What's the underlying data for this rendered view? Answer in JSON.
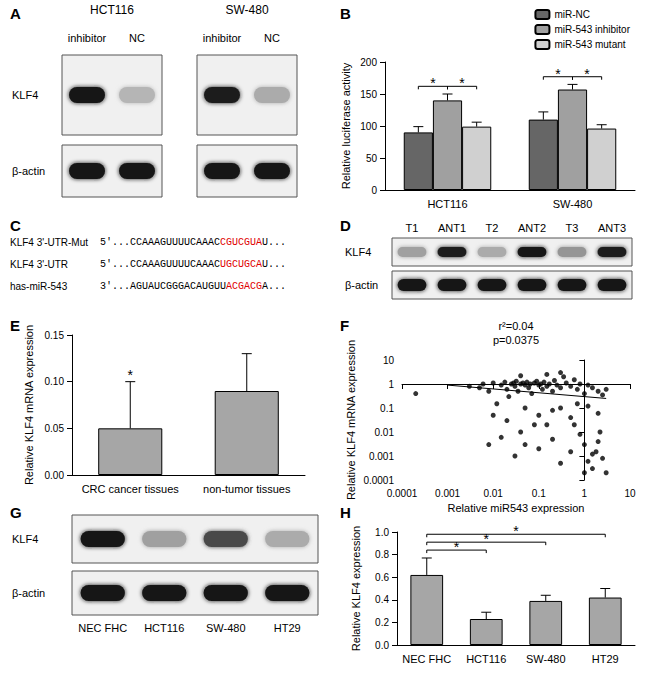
{
  "chart_data": [
    {
      "panel": "B",
      "type": "bar",
      "categories": [
        "HCT116",
        "SW-480"
      ],
      "series": [
        {
          "name": "miR-NC",
          "color": "#666666",
          "values": [
            90,
            110
          ],
          "errors": [
            9,
            12
          ]
        },
        {
          "name": "miR-543 inhibitor",
          "color": "#a0a0a0",
          "values": [
            140,
            157
          ],
          "errors": [
            10,
            8
          ]
        },
        {
          "name": "miR-543 mutant",
          "color": "#d0d0d0",
          "values": [
            99,
            96
          ],
          "errors": [
            7,
            6
          ]
        }
      ],
      "ylabel": "Relative luciferase activity",
      "ylim": [
        0,
        200
      ],
      "yticks": [
        0,
        50,
        100,
        150,
        200
      ],
      "grid": false,
      "legend": "upper right",
      "significance": [
        {
          "category": "HCT116",
          "from": "miR-NC",
          "to": "miR-543 inhibitor",
          "label": "*"
        },
        {
          "category": "HCT116",
          "from": "miR-543 inhibitor",
          "to": "miR-543 mutant",
          "label": "*"
        },
        {
          "category": "SW-480",
          "from": "miR-NC",
          "to": "miR-543 inhibitor",
          "label": "*"
        },
        {
          "category": "SW-480",
          "from": "miR-543 inhibitor",
          "to": "miR-543 mutant",
          "label": "*"
        }
      ]
    },
    {
      "panel": "E",
      "type": "bar",
      "categories": [
        "CRC cancer tissues",
        "non-tumor tissues"
      ],
      "values": [
        0.05,
        0.09
      ],
      "errors": [
        0.05,
        0.04
      ],
      "color": "#a6a6a6",
      "ylabel": "Relative KLF4 mRNA expression",
      "ylim": [
        0,
        0.15
      ],
      "yticks": [
        {
          "value": 0,
          "label": "0.00"
        },
        0.05,
        {
          "value": 0.1,
          "label": "0.10"
        },
        0.15
      ],
      "grid": false,
      "significance": [
        {
          "category": "CRC cancer tissues",
          "label": "*"
        }
      ]
    },
    {
      "panel": "F",
      "type": "scatter",
      "x": [
        0.0002,
        0.003,
        0.005,
        0.006,
        0.008,
        0.01,
        0.012,
        0.015,
        0.018,
        0.02,
        0.022,
        0.025,
        0.028,
        0.03,
        0.032,
        0.035,
        0.04,
        0.045,
        0.05,
        0.055,
        0.06,
        0.065,
        0.07,
        0.08,
        0.09,
        0.1,
        0.11,
        0.12,
        0.13,
        0.15,
        0.17,
        0.2,
        0.22,
        0.25,
        0.3,
        0.35,
        0.4,
        0.5,
        0.6,
        0.7,
        0.8,
        1.0,
        1.2,
        1.5,
        2.0,
        2.5,
        3.0,
        0.3,
        0.04,
        0.15,
        0.01,
        0.02,
        0.05,
        0.1,
        0.15,
        0.2,
        0.3,
        0.5,
        0.7,
        1.2,
        2.0,
        0.04,
        0.08,
        0.03,
        0.05,
        0.1,
        0.2,
        0.3,
        0.5,
        0.8,
        1.0,
        1.2,
        1.5,
        1.8,
        2.0,
        2.5,
        3.0,
        1.0,
        1.5,
        2.2,
        0.6,
        0.008,
        0.015
      ],
      "y": [
        0.4,
        0.8,
        0.7,
        1.0,
        0.5,
        1.1,
        0.15,
        0.9,
        1.2,
        0.6,
        0.3,
        1.0,
        1.1,
        0.8,
        1.3,
        0.5,
        1.0,
        1.1,
        0.9,
        1.2,
        0.7,
        1.0,
        0.4,
        1.1,
        1.3,
        0.9,
        1.0,
        0.6,
        1.2,
        0.8,
        1.0,
        0.5,
        1.4,
        0.9,
        0.7,
        2.0,
        1.1,
        0.8,
        1.5,
        0.6,
        1.0,
        0.4,
        0.9,
        0.7,
        0.5,
        0.35,
        0.6,
        3.0,
        2.2,
        2.5,
        0.05,
        0.03,
        0.1,
        0.05,
        0.02,
        0.08,
        0.1,
        0.04,
        0.15,
        0.12,
        0.06,
        0.01,
        0.02,
        0.001,
        0.003,
        0.002,
        0.005,
        0.0005,
        0.0015,
        0.008,
        0.003,
        0.0006,
        0.0003,
        0.0015,
        0.004,
        0.0008,
        0.0002,
        0.0002,
        0.0012,
        0.01,
        0.02,
        0.003,
        0.006
      ],
      "color": "#000000",
      "marker": "circle",
      "trend_line": {
        "x": [
          0.001,
          3
        ],
        "y": [
          0.9,
          0.25
        ]
      },
      "annotations": [
        "r²=0.04",
        "p=0.0375"
      ],
      "xlabel": "Relative miR543 expression",
      "ylabel": "Relative KLF4 mRNA expression",
      "log": true,
      "xlim": [
        0.0001,
        10
      ],
      "xticks": [
        0.0001,
        0.001,
        0.01,
        0.1,
        1,
        10
      ],
      "ylim": [
        0.0001,
        10
      ],
      "yticks": [
        0.0001,
        0.001,
        0.01,
        0.1,
        1,
        10
      ],
      "grid": false
    },
    {
      "panel": "H",
      "type": "bar",
      "categories": [
        "NEC FHC",
        "HCT116",
        "SW-480",
        "HT29"
      ],
      "values": [
        0.62,
        0.23,
        0.39,
        0.42
      ],
      "errors": [
        0.15,
        0.06,
        0.05,
        0.08
      ],
      "color": "#a6a6a6",
      "ylabel": "Relative KLF4 expression",
      "ylim": [
        0,
        1.0
      ],
      "yticks": [
        {
          "value": 0,
          "label": "0.0"
        },
        0.2,
        0.4,
        0.6,
        0.8,
        {
          "value": 1,
          "label": "1.0"
        }
      ],
      "grid": false,
      "significance": [
        {
          "from": "NEC FHC",
          "to": "HCT116",
          "label": "*"
        },
        {
          "from": "NEC FHC",
          "to": "SW-480",
          "label": "*"
        },
        {
          "from": "NEC FHC",
          "to": "HT29",
          "label": "*"
        }
      ]
    }
  ],
  "blots": [
    {
      "panel": "A",
      "row_labels": [
        "KLF4",
        "β-actin"
      ],
      "blocks": [
        {
          "title": "HCT116",
          "lanes": [
            "inhibitor",
            "NC"
          ],
          "intensity": [
            [
              1.0,
              0.25
            ],
            [
              1.0,
              1.0
            ]
          ]
        },
        {
          "title": "SW-480",
          "lanes": [
            "inhibitor",
            "NC"
          ],
          "intensity": [
            [
              0.95,
              0.3
            ],
            [
              1.0,
              1.0
            ]
          ]
        }
      ]
    },
    {
      "panel": "D",
      "row_labels": [
        "KLF4",
        "β-actin"
      ],
      "blocks": [
        {
          "lanes": [
            "T1",
            "ANT1",
            "T2",
            "ANT2",
            "T3",
            "ANT3"
          ],
          "intensity": [
            [
              0.35,
              0.95,
              0.3,
              1.0,
              0.4,
              0.95
            ],
            [
              1.0,
              1.0,
              1.0,
              1.0,
              1.0,
              1.0
            ]
          ]
        }
      ]
    },
    {
      "panel": "G",
      "row_labels": [
        "KLF4",
        "β-actin"
      ],
      "blocks": [
        {
          "lanes": [
            "NEC FHC",
            "HCT116",
            "SW-480",
            "HT29"
          ],
          "intensity": [
            [
              1.0,
              0.35,
              0.75,
              0.3
            ],
            [
              1.0,
              1.0,
              1.0,
              1.0
            ]
          ]
        }
      ]
    }
  ],
  "sequences": {
    "panel": "C",
    "rows": [
      {
        "label": "KLF4 3'-UTR-Mut",
        "prefix": "5'...CCAAAGUUUUCAAAC",
        "highlight": "CGUCGUA",
        "suffix": "U..."
      },
      {
        "label": "KLF4 3'-UTR",
        "prefix": "5'...CCAAAGUUUUCAAAC",
        "highlight": "UGCUGCA",
        "suffix": "U..."
      },
      {
        "label": "has-miR-543",
        "prefix": "3'...AGUAUCGGGACAUGUU",
        "highlight": "ACGACG",
        "suffix": "A..."
      }
    ]
  }
}
